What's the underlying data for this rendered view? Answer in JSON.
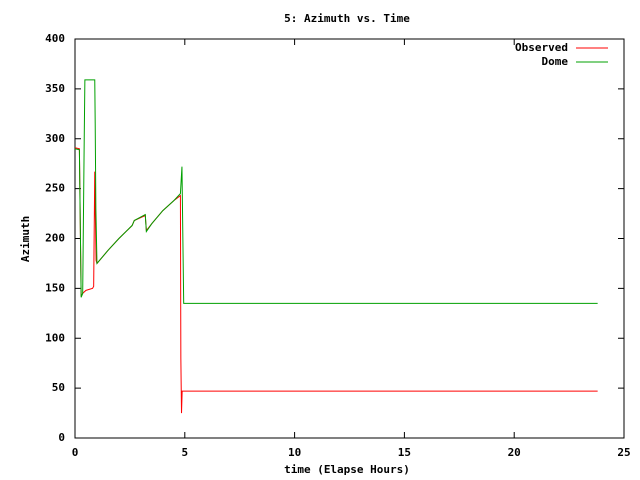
{
  "chart_data": {
    "type": "line",
    "title": "5: Azimuth vs. Time",
    "x_label": "time (Elapse Hours)",
    "y_label": "Azimuth",
    "xlim": [
      0,
      25
    ],
    "xticks": [
      0,
      5,
      10,
      15,
      20,
      25
    ],
    "ylim": [
      0,
      400
    ],
    "yticks": [
      0,
      50,
      100,
      150,
      200,
      250,
      300,
      350,
      400
    ],
    "grid": false,
    "legend_position": "top-right",
    "series": [
      {
        "name": "Observed",
        "color": "#ff0000",
        "x": [
          0,
          0.2,
          0.28,
          0.35,
          0.5,
          0.8,
          0.85,
          0.9,
          0.93,
          0.96,
          1.0,
          1.5,
          2.0,
          2.6,
          2.7,
          3.2,
          3.25,
          3.5,
          4.0,
          4.5,
          4.8,
          4.82,
          4.85,
          4.88,
          4.95,
          23.8
        ],
        "values": [
          291,
          290,
          142,
          145,
          148,
          150,
          152,
          267,
          220,
          178,
          175,
          188,
          200,
          213,
          218,
          223,
          208,
          215,
          228,
          238,
          243,
          80,
          25,
          47,
          47,
          47
        ]
      },
      {
        "name": "Dome",
        "color": "#00a000",
        "x": [
          0,
          0.2,
          0.28,
          0.35,
          0.42,
          0.45,
          0.9,
          0.92,
          0.95,
          1.0,
          1.5,
          2.0,
          2.6,
          2.7,
          3.2,
          3.25,
          3.5,
          4.0,
          4.5,
          4.8,
          4.87,
          4.95,
          23.8
        ],
        "values": [
          290,
          289,
          141,
          145,
          300,
          359,
          359,
          315,
          230,
          175,
          188,
          200,
          213,
          218,
          224,
          207,
          215,
          228,
          238,
          245,
          272,
          135,
          135
        ]
      }
    ]
  }
}
